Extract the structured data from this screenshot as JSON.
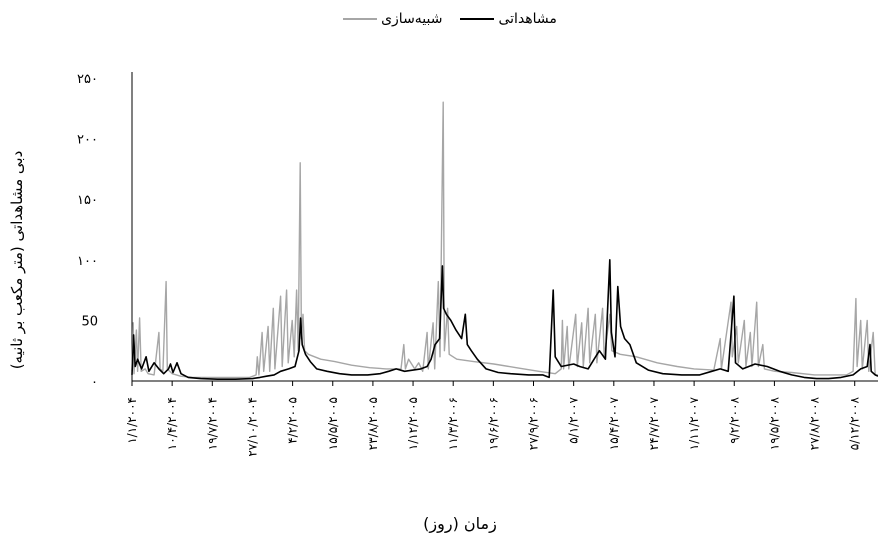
{
  "chart_data": {
    "type": "line",
    "title": "",
    "xlabel": "زمان (روز)",
    "ylabel": "دبی مشاهداتی (متر مکعب بر ثانیه)",
    "ylim": [
      0,
      250
    ],
    "yticks": [
      "۰",
      "50",
      "۱۰۰",
      "۱۵۰",
      "۲۰۰",
      "۲۵۰"
    ],
    "ytick_values": [
      0,
      50,
      100,
      150,
      200,
      250
    ],
    "xlim": [
      "2004-01-01",
      "2009-02-01"
    ],
    "xticks": [
      {
        "label": "۱/۱/۲۰۰۴",
        "date": "2004-01-01"
      },
      {
        "label": "۱۰/۴/۲۰۰۴",
        "date": "2004-04-10"
      },
      {
        "label": "۱۹/۷/۲۰۰۴",
        "date": "2004-07-19"
      },
      {
        "label": "۲۷/۱۰/۲۰۰۴",
        "date": "2004-10-27"
      },
      {
        "label": "۴/۲/۲۰۰۵",
        "date": "2005-02-04"
      },
      {
        "label": "۱۵/۵/۲۰۰۵",
        "date": "2005-05-15"
      },
      {
        "label": "۲۳/۸/۲۰۰۵",
        "date": "2005-08-23"
      },
      {
        "label": "۱/۱۲/۲۰۰۵",
        "date": "2005-12-01"
      },
      {
        "label": "۱۱/۳/۲۰۰۶",
        "date": "2006-03-11"
      },
      {
        "label": "۱۹/۶/۲۰۰۶",
        "date": "2006-06-19"
      },
      {
        "label": "۲۷/۹/۲۰۰۶",
        "date": "2006-09-27"
      },
      {
        "label": "۵/۱/۲۰۰۷",
        "date": "2007-01-05"
      },
      {
        "label": "۱۵/۴/۲۰۰۷",
        "date": "2007-04-15"
      },
      {
        "label": "۲۴/۷/۲۰۰۷",
        "date": "2007-07-24"
      },
      {
        "label": "۱/۱۱/۲۰۰۷",
        "date": "2007-11-01"
      },
      {
        "label": "۹/۲/۲۰۰۸",
        "date": "2008-02-09"
      },
      {
        "label": "۱۹/۵/۲۰۰۸",
        "date": "2008-05-19"
      },
      {
        "label": "۲۷/۸/۲۰۰۸",
        "date": "2008-08-27"
      },
      {
        "label": "۵/۱۲/۲۰۰۸",
        "date": "2008-12-05"
      }
    ],
    "legend_position": "top-center",
    "grid": false,
    "series": [
      {
        "name": "مشاهداتی",
        "color": "#000000",
        "points": [
          [
            "2004-01-01",
            5
          ],
          [
            "2004-01-05",
            38
          ],
          [
            "2004-01-09",
            12
          ],
          [
            "2004-01-15",
            18
          ],
          [
            "2004-01-25",
            10
          ],
          [
            "2004-02-05",
            20
          ],
          [
            "2004-02-12",
            8
          ],
          [
            "2004-02-25",
            15
          ],
          [
            "2004-03-08",
            10
          ],
          [
            "2004-03-20",
            6
          ],
          [
            "2004-04-01",
            10
          ],
          [
            "2004-04-06",
            14
          ],
          [
            "2004-04-12",
            7
          ],
          [
            "2004-04-22",
            15
          ],
          [
            "2004-05-02",
            6
          ],
          [
            "2004-05-20",
            3
          ],
          [
            "2004-06-20",
            2
          ],
          [
            "2004-08-01",
            1.5
          ],
          [
            "2004-09-15",
            1.5
          ],
          [
            "2004-10-27",
            2
          ],
          [
            "2004-11-15",
            3
          ],
          [
            "2004-12-01",
            4
          ],
          [
            "2004-12-20",
            5
          ],
          [
            "2005-01-05",
            8
          ],
          [
            "2005-01-25",
            10
          ],
          [
            "2005-02-10",
            12
          ],
          [
            "2005-02-20",
            25
          ],
          [
            "2005-02-24",
            52
          ],
          [
            "2005-02-28",
            30
          ],
          [
            "2005-03-08",
            22
          ],
          [
            "2005-03-20",
            16
          ],
          [
            "2005-04-05",
            10
          ],
          [
            "2005-05-01",
            8
          ],
          [
            "2005-06-01",
            6
          ],
          [
            "2005-07-01",
            5
          ],
          [
            "2005-08-10",
            5
          ],
          [
            "2005-09-10",
            6
          ],
          [
            "2005-10-01",
            8
          ],
          [
            "2005-10-20",
            10
          ],
          [
            "2005-11-10",
            8
          ],
          [
            "2005-12-01",
            9
          ],
          [
            "2005-12-20",
            10
          ],
          [
            "2006-01-05",
            12
          ],
          [
            "2006-01-15",
            18
          ],
          [
            "2006-01-25",
            30
          ],
          [
            "2006-02-05",
            35
          ],
          [
            "2006-02-12",
            95
          ],
          [
            "2006-02-15",
            60
          ],
          [
            "2006-02-22",
            55
          ],
          [
            "2006-03-05",
            50
          ],
          [
            "2006-03-18",
            42
          ],
          [
            "2006-04-01",
            35
          ],
          [
            "2006-04-10",
            55
          ],
          [
            "2006-04-15",
            30
          ],
          [
            "2006-04-25",
            25
          ],
          [
            "2006-05-10",
            18
          ],
          [
            "2006-06-01",
            10
          ],
          [
            "2006-07-01",
            7
          ],
          [
            "2006-08-01",
            6
          ],
          [
            "2006-09-15",
            5
          ],
          [
            "2006-10-20",
            5
          ],
          [
            "2006-11-05",
            3
          ],
          [
            "2006-11-15",
            75
          ],
          [
            "2006-11-20",
            20
          ],
          [
            "2006-12-05",
            12
          ],
          [
            "2007-01-05",
            14
          ],
          [
            "2007-01-20",
            12
          ],
          [
            "2007-02-10",
            10
          ],
          [
            "2007-02-25",
            18
          ],
          [
            "2007-03-10",
            25
          ],
          [
            "2007-03-25",
            18
          ],
          [
            "2007-04-05",
            100
          ],
          [
            "2007-04-09",
            40
          ],
          [
            "2007-04-18",
            20
          ],
          [
            "2007-04-25",
            78
          ],
          [
            "2007-05-02",
            45
          ],
          [
            "2007-05-12",
            35
          ],
          [
            "2007-05-25",
            30
          ],
          [
            "2007-06-10",
            15
          ],
          [
            "2007-07-10",
            9
          ],
          [
            "2007-08-15",
            6
          ],
          [
            "2007-10-01",
            5
          ],
          [
            "2007-11-15",
            5
          ],
          [
            "2007-12-15",
            8
          ],
          [
            "2008-01-05",
            10
          ],
          [
            "2008-01-25",
            8
          ],
          [
            "2008-02-08",
            70
          ],
          [
            "2008-02-12",
            15
          ],
          [
            "2008-03-01",
            10
          ],
          [
            "2008-04-01",
            14
          ],
          [
            "2008-05-01",
            12
          ],
          [
            "2008-06-01",
            8
          ],
          [
            "2008-07-01",
            5
          ],
          [
            "2008-08-01",
            3
          ],
          [
            "2008-09-01",
            2
          ],
          [
            "2008-10-01",
            2
          ],
          [
            "2008-11-01",
            3
          ],
          [
            "2008-12-01",
            5
          ],
          [
            "2008-12-20",
            10
          ],
          [
            "2009-01-05",
            12
          ],
          [
            "2009-01-12",
            30
          ],
          [
            "2009-01-15",
            8
          ],
          [
            "2009-01-25",
            5
          ],
          [
            "2009-02-01",
            4
          ]
        ]
      },
      {
        "name": "شبیه‌سازی",
        "color": "#a6a6a6",
        "points": [
          [
            "2004-01-01",
            8
          ],
          [
            "2004-01-04",
            48
          ],
          [
            "2004-01-06",
            6
          ],
          [
            "2004-01-12",
            42
          ],
          [
            "2004-01-15",
            8
          ],
          [
            "2004-01-20",
            52
          ],
          [
            "2004-01-24",
            8
          ],
          [
            "2004-02-03",
            10
          ],
          [
            "2004-02-10",
            6
          ],
          [
            "2004-02-25",
            5
          ],
          [
            "2004-03-08",
            40
          ],
          [
            "2004-03-11",
            10
          ],
          [
            "2004-03-18",
            8
          ],
          [
            "2004-03-26",
            82
          ],
          [
            "2004-03-29",
            10
          ],
          [
            "2004-04-10",
            6
          ],
          [
            "2004-05-01",
            4
          ],
          [
            "2004-06-01",
            3
          ],
          [
            "2004-07-19",
            3
          ],
          [
            "2004-09-01",
            3
          ],
          [
            "2004-10-20",
            3
          ],
          [
            "2004-11-05",
            5
          ],
          [
            "2004-11-08",
            20
          ],
          [
            "2004-11-12",
            5
          ],
          [
            "2004-11-20",
            40
          ],
          [
            "2004-11-24",
            8
          ],
          [
            "2004-12-05",
            45
          ],
          [
            "2004-12-09",
            8
          ],
          [
            "2004-12-18",
            60
          ],
          [
            "2004-12-22",
            10
          ],
          [
            "2005-01-05",
            70
          ],
          [
            "2005-01-09",
            12
          ],
          [
            "2005-01-20",
            75
          ],
          [
            "2005-01-24",
            15
          ],
          [
            "2005-02-03",
            50
          ],
          [
            "2005-02-08",
            20
          ],
          [
            "2005-02-14",
            75
          ],
          [
            "2005-02-18",
            25
          ],
          [
            "2005-02-23",
            180
          ],
          [
            "2005-02-26",
            35
          ],
          [
            "2005-03-02",
            55
          ],
          [
            "2005-03-06",
            25
          ],
          [
            "2005-03-15",
            22
          ],
          [
            "2005-04-15",
            18
          ],
          [
            "2005-05-20",
            16
          ],
          [
            "2005-07-01",
            13
          ],
          [
            "2005-08-15",
            11
          ],
          [
            "2005-09-25",
            10
          ],
          [
            "2005-11-01",
            10
          ],
          [
            "2005-11-08",
            30
          ],
          [
            "2005-11-12",
            10
          ],
          [
            "2005-11-20",
            18
          ],
          [
            "2005-12-05",
            10
          ],
          [
            "2005-12-15",
            15
          ],
          [
            "2005-12-25",
            8
          ],
          [
            "2006-01-05",
            40
          ],
          [
            "2006-01-08",
            10
          ],
          [
            "2006-01-20",
            48
          ],
          [
            "2006-01-24",
            10
          ],
          [
            "2006-02-02",
            82
          ],
          [
            "2006-02-06",
            20
          ],
          [
            "2006-02-14",
            230
          ],
          [
            "2006-02-17",
            25
          ],
          [
            "2006-02-25",
            60
          ],
          [
            "2006-03-01",
            22
          ],
          [
            "2006-03-20",
            18
          ],
          [
            "2006-05-01",
            16
          ],
          [
            "2006-06-20",
            14
          ],
          [
            "2006-08-15",
            11
          ],
          [
            "2006-10-10",
            8
          ],
          [
            "2006-11-20",
            6
          ],
          [
            "2006-12-05",
            10
          ],
          [
            "2006-12-08",
            50
          ],
          [
            "2006-12-11",
            10
          ],
          [
            "2006-12-20",
            45
          ],
          [
            "2006-12-24",
            10
          ],
          [
            "2007-01-10",
            55
          ],
          [
            "2007-01-14",
            12
          ],
          [
            "2007-01-25",
            48
          ],
          [
            "2007-01-29",
            12
          ],
          [
            "2007-02-10",
            60
          ],
          [
            "2007-02-14",
            15
          ],
          [
            "2007-02-28",
            55
          ],
          [
            "2007-03-04",
            15
          ],
          [
            "2007-03-18",
            60
          ],
          [
            "2007-03-22",
            20
          ],
          [
            "2007-04-05",
            55
          ],
          [
            "2007-04-10",
            25
          ],
          [
            "2007-05-01",
            22
          ],
          [
            "2007-06-10",
            20
          ],
          [
            "2007-08-01",
            15
          ],
          [
            "2007-09-20",
            12
          ],
          [
            "2007-11-01",
            10
          ],
          [
            "2007-12-20",
            9
          ],
          [
            "2008-01-05",
            35
          ],
          [
            "2008-01-08",
            10
          ],
          [
            "2008-02-01",
            65
          ],
          [
            "2008-02-04",
            20
          ],
          [
            "2008-02-15",
            45
          ],
          [
            "2008-02-19",
            15
          ],
          [
            "2008-03-05",
            50
          ],
          [
            "2008-03-09",
            12
          ],
          [
            "2008-03-20",
            40
          ],
          [
            "2008-03-24",
            12
          ],
          [
            "2008-04-05",
            65
          ],
          [
            "2008-04-09",
            12
          ],
          [
            "2008-04-20",
            30
          ],
          [
            "2008-04-24",
            10
          ],
          [
            "2008-05-20",
            8
          ],
          [
            "2008-07-01",
            7
          ],
          [
            "2008-08-27",
            5
          ],
          [
            "2008-10-01",
            5
          ],
          [
            "2008-11-15",
            5
          ],
          [
            "2008-12-01",
            8
          ],
          [
            "2008-12-08",
            68
          ],
          [
            "2008-12-11",
            12
          ],
          [
            "2008-12-20",
            50
          ],
          [
            "2008-12-24",
            10
          ],
          [
            "2009-01-05",
            50
          ],
          [
            "2009-01-09",
            8
          ],
          [
            "2009-01-20",
            40
          ],
          [
            "2009-01-25",
            5
          ],
          [
            "2009-02-01",
            5
          ]
        ]
      }
    ]
  }
}
